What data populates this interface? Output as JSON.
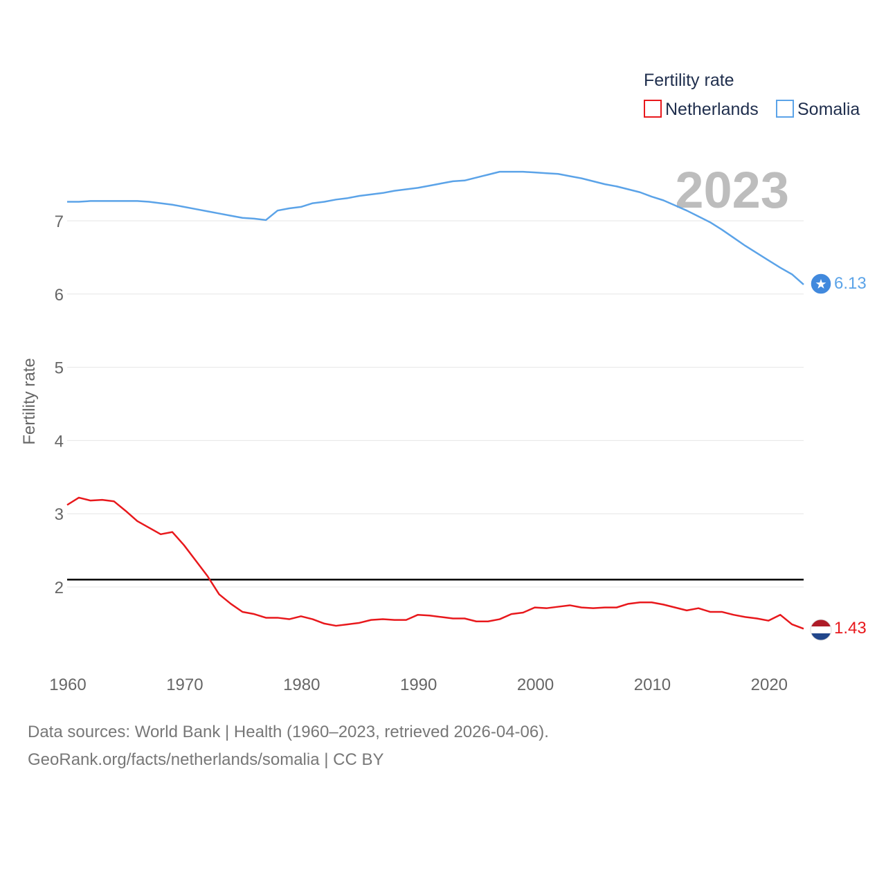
{
  "chart_data": {
    "type": "line",
    "legend_title": "Fertility rate",
    "legend_position": "top-right",
    "ylabel": "Fertility rate",
    "xlabel": "",
    "xlim": [
      1960,
      2023
    ],
    "ylim": [
      1,
      8
    ],
    "y_ticks": [
      2,
      3,
      4,
      5,
      6,
      7
    ],
    "x_ticks": [
      1960,
      1970,
      1980,
      1990,
      2000,
      2010,
      2020
    ],
    "year_label": "2023",
    "reference_line": {
      "value": 2.1,
      "color": "#000000"
    },
    "grid": true,
    "series": [
      {
        "name": "Netherlands",
        "color": "#e8181c",
        "end_label": "1.43",
        "x": [
          1960,
          1961,
          1962,
          1963,
          1964,
          1965,
          1966,
          1967,
          1968,
          1969,
          1970,
          1971,
          1972,
          1973,
          1974,
          1975,
          1976,
          1977,
          1978,
          1979,
          1980,
          1981,
          1982,
          1983,
          1984,
          1985,
          1986,
          1987,
          1988,
          1989,
          1990,
          1991,
          1992,
          1993,
          1994,
          1995,
          1996,
          1997,
          1998,
          1999,
          2000,
          2001,
          2002,
          2003,
          2004,
          2005,
          2006,
          2007,
          2008,
          2009,
          2010,
          2011,
          2012,
          2013,
          2014,
          2015,
          2016,
          2017,
          2018,
          2019,
          2020,
          2021,
          2022,
          2023
        ],
        "values": [
          3.12,
          3.22,
          3.18,
          3.19,
          3.17,
          3.04,
          2.9,
          2.81,
          2.72,
          2.75,
          2.57,
          2.36,
          2.15,
          1.9,
          1.77,
          1.66,
          1.63,
          1.58,
          1.58,
          1.56,
          1.6,
          1.56,
          1.5,
          1.47,
          1.49,
          1.51,
          1.55,
          1.56,
          1.55,
          1.55,
          1.62,
          1.61,
          1.59,
          1.57,
          1.57,
          1.53,
          1.53,
          1.56,
          1.63,
          1.65,
          1.72,
          1.71,
          1.73,
          1.75,
          1.72,
          1.71,
          1.72,
          1.72,
          1.77,
          1.79,
          1.79,
          1.76,
          1.72,
          1.68,
          1.71,
          1.66,
          1.66,
          1.62,
          1.59,
          1.57,
          1.54,
          1.62,
          1.49,
          1.43
        ]
      },
      {
        "name": "Somalia",
        "color": "#5ba3e8",
        "end_label": "6.13",
        "x": [
          1960,
          1961,
          1962,
          1963,
          1964,
          1965,
          1966,
          1967,
          1968,
          1969,
          1970,
          1971,
          1972,
          1973,
          1974,
          1975,
          1976,
          1977,
          1978,
          1979,
          1980,
          1981,
          1982,
          1983,
          1984,
          1985,
          1986,
          1987,
          1988,
          1989,
          1990,
          1991,
          1992,
          1993,
          1994,
          1995,
          1996,
          1997,
          1998,
          1999,
          2000,
          2001,
          2002,
          2003,
          2004,
          2005,
          2006,
          2007,
          2008,
          2009,
          2010,
          2011,
          2012,
          2013,
          2014,
          2015,
          2016,
          2017,
          2018,
          2019,
          2020,
          2021,
          2022,
          2023
        ],
        "values": [
          7.26,
          7.26,
          7.27,
          7.27,
          7.27,
          7.27,
          7.27,
          7.26,
          7.24,
          7.22,
          7.19,
          7.16,
          7.13,
          7.1,
          7.07,
          7.04,
          7.03,
          7.01,
          7.14,
          7.17,
          7.19,
          7.24,
          7.26,
          7.29,
          7.31,
          7.34,
          7.36,
          7.38,
          7.41,
          7.43,
          7.45,
          7.48,
          7.51,
          7.54,
          7.55,
          7.59,
          7.63,
          7.67,
          7.67,
          7.67,
          7.66,
          7.65,
          7.64,
          7.61,
          7.58,
          7.54,
          7.5,
          7.47,
          7.43,
          7.39,
          7.33,
          7.28,
          7.21,
          7.14,
          7.06,
          6.98,
          6.88,
          6.77,
          6.66,
          6.56,
          6.46,
          6.36,
          6.27,
          6.13
        ]
      }
    ]
  },
  "footer": {
    "line1": "Data sources: World Bank | Health (1960–2023, retrieved 2026-04-06).",
    "line2": "GeoRank.org/facts/netherlands/somalia | CC BY"
  }
}
